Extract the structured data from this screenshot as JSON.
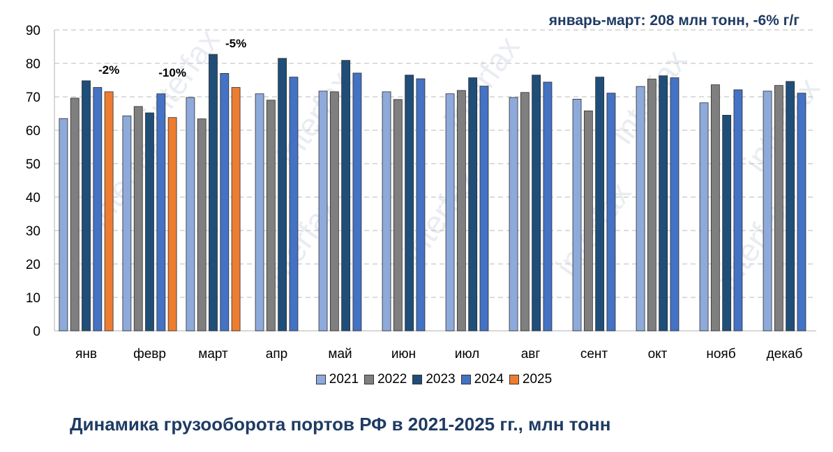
{
  "summary": "январь-март: 208 млн тонн, -6% г/г",
  "caption": "Динамика  грузооборота портов РФ в 2021-2025 гг., млн тонн",
  "watermark": "interfax",
  "chart_data": {
    "type": "bar",
    "title": "Динамика  грузооборота портов РФ в 2021-2025 гг., млн тонн",
    "xlabel": "",
    "ylabel": "",
    "ylim": [
      0,
      90
    ],
    "yticks": [
      "0",
      "10",
      "20",
      "30",
      "40",
      "50",
      "60",
      "70",
      "80",
      "90"
    ],
    "grid": true,
    "legend_position": "bottom",
    "categories": [
      "янв",
      "февр",
      "март",
      "апр",
      "май",
      "июн",
      "июл",
      "авг",
      "сент",
      "окт",
      "нояб",
      "декаб"
    ],
    "series": [
      {
        "name": "2021",
        "color": "#8eaadb",
        "values": [
          63.5,
          64.3,
          69.8,
          70.9,
          71.7,
          71.5,
          70.9,
          69.8,
          69.3,
          73.1,
          68.2,
          71.7
        ]
      },
      {
        "name": "2022",
        "color": "#7f7f7f",
        "values": [
          69.6,
          67.1,
          63.4,
          69.0,
          71.5,
          69.2,
          71.9,
          71.3,
          65.8,
          75.3,
          73.6,
          73.4
        ]
      },
      {
        "name": "2023",
        "color": "#1f4e79",
        "values": [
          74.8,
          65.2,
          82.7,
          81.5,
          80.9,
          76.5,
          75.7,
          76.5,
          75.9,
          76.3,
          64.5,
          74.6
        ]
      },
      {
        "name": "2024",
        "color": "#4472c4",
        "values": [
          72.8,
          70.9,
          77.0,
          75.9,
          77.1,
          75.4,
          73.2,
          74.4,
          71.1,
          75.7,
          72.1,
          71.1
        ]
      },
      {
        "name": "2025",
        "color": "#ed7d31",
        "values": [
          71.5,
          63.8,
          72.8,
          null,
          null,
          null,
          null,
          null,
          null,
          null,
          null,
          null
        ]
      }
    ],
    "annotations": [
      {
        "category": "янв",
        "text": "-2%"
      },
      {
        "category": "февр",
        "text": "-10%"
      },
      {
        "category": "март",
        "text": "-5%"
      }
    ]
  }
}
